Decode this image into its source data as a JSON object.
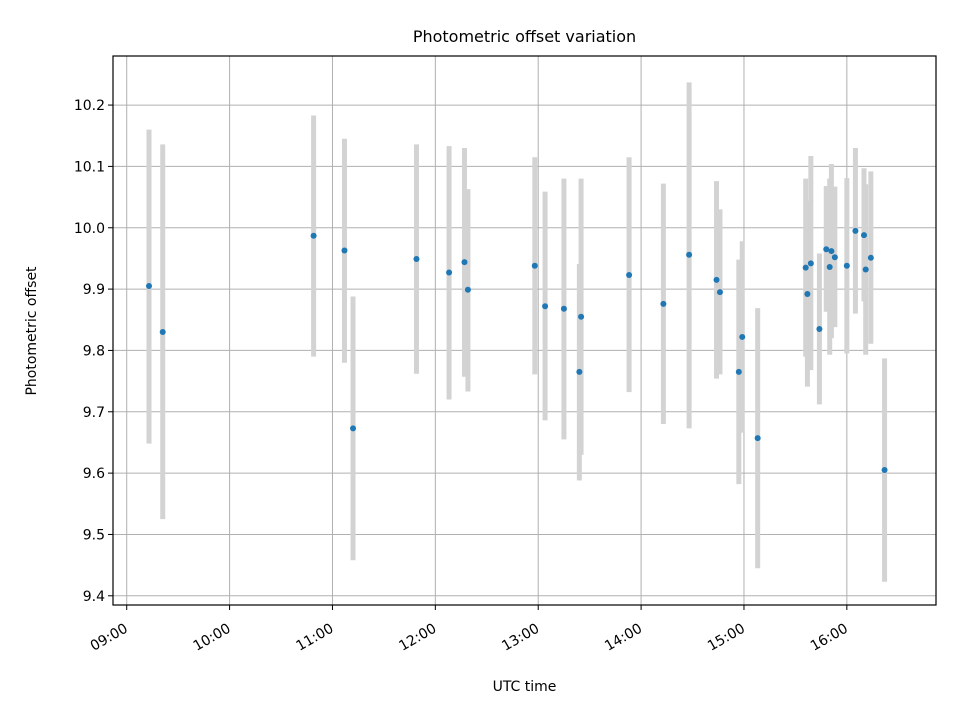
{
  "chart_data": {
    "type": "scatter",
    "title": "Photometric offset variation",
    "xlabel": "UTC time",
    "ylabel": "Photometric offset",
    "x_format": "HH:MM",
    "xlim": [
      "08:52",
      "16:52"
    ],
    "ylim": [
      9.385,
      10.28
    ],
    "x_ticks": [
      "09:00",
      "10:00",
      "11:00",
      "12:00",
      "13:00",
      "14:00",
      "15:00",
      "16:00"
    ],
    "y_ticks": [
      "9.4",
      "9.5",
      "9.6",
      "9.7",
      "9.8",
      "9.9",
      "10.0",
      "10.1",
      "10.2"
    ],
    "grid": true,
    "point_color": "#1f77b4",
    "errorbar_color": "#d3d3d3",
    "points": [
      {
        "x": "09:13",
        "y": 9.905,
        "ylow": 9.648,
        "yhigh": 10.16
      },
      {
        "x": "09:21",
        "y": 9.83,
        "ylow": 9.525,
        "yhigh": 10.136
      },
      {
        "x": "10:49",
        "y": 9.987,
        "ylow": 9.79,
        "yhigh": 10.183
      },
      {
        "x": "11:07",
        "y": 9.963,
        "ylow": 9.78,
        "yhigh": 10.145
      },
      {
        "x": "11:12",
        "y": 9.673,
        "ylow": 9.458,
        "yhigh": 9.888
      },
      {
        "x": "11:49",
        "y": 9.949,
        "ylow": 9.762,
        "yhigh": 10.136
      },
      {
        "x": "12:08",
        "y": 9.927,
        "ylow": 9.72,
        "yhigh": 10.133
      },
      {
        "x": "12:17",
        "y": 9.944,
        "ylow": 9.757,
        "yhigh": 10.13
      },
      {
        "x": "12:19",
        "y": 9.899,
        "ylow": 9.733,
        "yhigh": 10.063
      },
      {
        "x": "12:58",
        "y": 9.938,
        "ylow": 9.761,
        "yhigh": 10.115
      },
      {
        "x": "13:04",
        "y": 9.872,
        "ylow": 9.686,
        "yhigh": 10.059
      },
      {
        "x": "13:15",
        "y": 9.868,
        "ylow": 9.655,
        "yhigh": 10.08
      },
      {
        "x": "13:24",
        "y": 9.765,
        "ylow": 9.588,
        "yhigh": 9.941
      },
      {
        "x": "13:25",
        "y": 9.855,
        "ylow": 9.63,
        "yhigh": 10.08
      },
      {
        "x": "13:53",
        "y": 9.923,
        "ylow": 9.732,
        "yhigh": 10.115
      },
      {
        "x": "14:13",
        "y": 9.876,
        "ylow": 9.68,
        "yhigh": 10.072
      },
      {
        "x": "14:28",
        "y": 9.956,
        "ylow": 9.673,
        "yhigh": 10.237
      },
      {
        "x": "14:44",
        "y": 9.915,
        "ylow": 9.754,
        "yhigh": 10.076
      },
      {
        "x": "14:46",
        "y": 9.895,
        "ylow": 9.761,
        "yhigh": 10.03
      },
      {
        "x": "14:57",
        "y": 9.765,
        "ylow": 9.582,
        "yhigh": 9.948
      },
      {
        "x": "14:59",
        "y": 9.822,
        "ylow": 9.666,
        "yhigh": 9.978
      },
      {
        "x": "15:08",
        "y": 9.657,
        "ylow": 9.445,
        "yhigh": 9.869
      },
      {
        "x": "15:36",
        "y": 9.935,
        "ylow": 9.79,
        "yhigh": 10.08
      },
      {
        "x": "15:37",
        "y": 9.892,
        "ylow": 9.741,
        "yhigh": 10.044
      },
      {
        "x": "15:39",
        "y": 9.942,
        "ylow": 9.768,
        "yhigh": 10.117
      },
      {
        "x": "15:44",
        "y": 9.835,
        "ylow": 9.712,
        "yhigh": 9.958
      },
      {
        "x": "15:48",
        "y": 9.965,
        "ylow": 9.863,
        "yhigh": 10.068
      },
      {
        "x": "15:50",
        "y": 9.936,
        "ylow": 9.793,
        "yhigh": 10.08
      },
      {
        "x": "15:51",
        "y": 9.962,
        "ylow": 9.82,
        "yhigh": 10.104
      },
      {
        "x": "15:53",
        "y": 9.952,
        "ylow": 9.838,
        "yhigh": 10.067
      },
      {
        "x": "16:00",
        "y": 9.938,
        "ylow": 9.795,
        "yhigh": 10.081
      },
      {
        "x": "16:05",
        "y": 9.995,
        "ylow": 9.86,
        "yhigh": 10.13
      },
      {
        "x": "16:10",
        "y": 9.988,
        "ylow": 9.88,
        "yhigh": 10.097
      },
      {
        "x": "16:11",
        "y": 9.932,
        "ylow": 9.793,
        "yhigh": 10.071
      },
      {
        "x": "16:14",
        "y": 9.951,
        "ylow": 9.811,
        "yhigh": 10.092
      },
      {
        "x": "16:22",
        "y": 9.605,
        "ylow": 9.423,
        "yhigh": 9.787
      }
    ]
  }
}
